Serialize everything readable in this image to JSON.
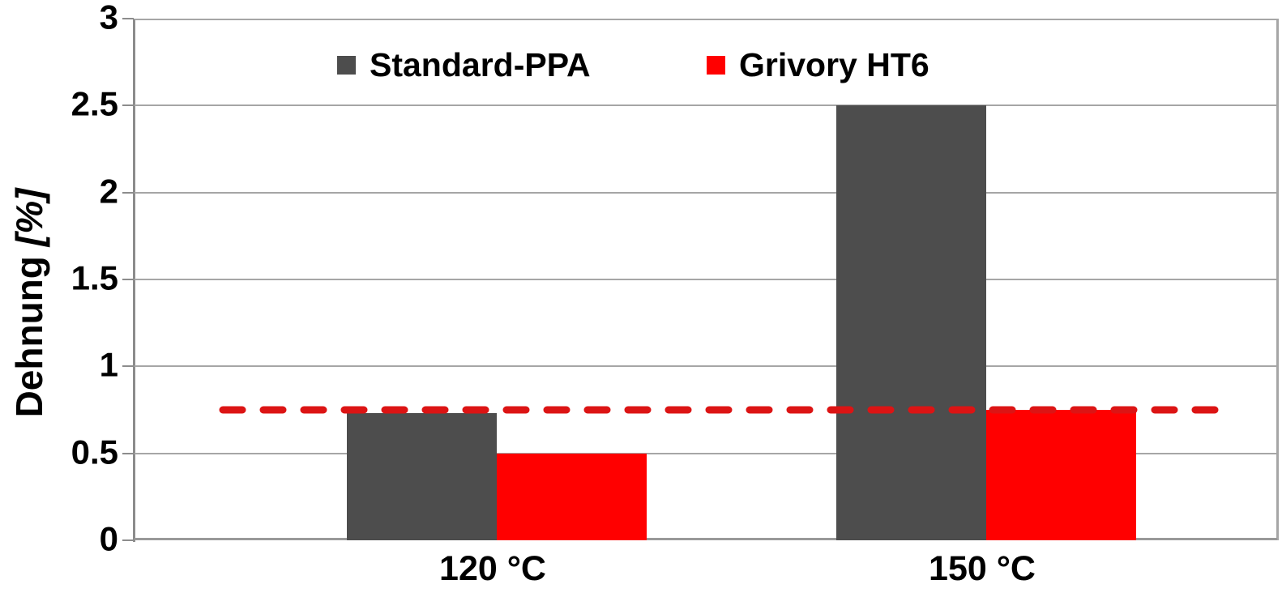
{
  "chart_data": {
    "type": "bar",
    "title": "",
    "xlabel": "",
    "ylabel": "Dehnung [%]",
    "ylabel_main": "Dehnung",
    "ylabel_unit": "[%]",
    "categories": [
      "120 °C",
      "150 °C"
    ],
    "series": [
      {
        "name": "Standard-PPA",
        "color": "#4d4d4d",
        "values": [
          0.73,
          2.5
        ]
      },
      {
        "name": "Grivory HT6",
        "color": "#ff0000",
        "values": [
          0.5,
          0.75
        ]
      }
    ],
    "reference_line": {
      "value": 0.75,
      "color": "#dc1414",
      "style": "dashed"
    },
    "ylim": [
      0,
      3
    ],
    "ytick_step": 0.5,
    "yticks": [
      "0",
      "0.5",
      "1",
      "1.5",
      "2",
      "2.5",
      "3"
    ],
    "grid": true,
    "legend_position": "top-center"
  },
  "colors": {
    "background": "#ffffff",
    "gridline": "#a6a6a6",
    "axis": "#8c8c8c",
    "baseline": "#999999",
    "text": "#000000"
  }
}
